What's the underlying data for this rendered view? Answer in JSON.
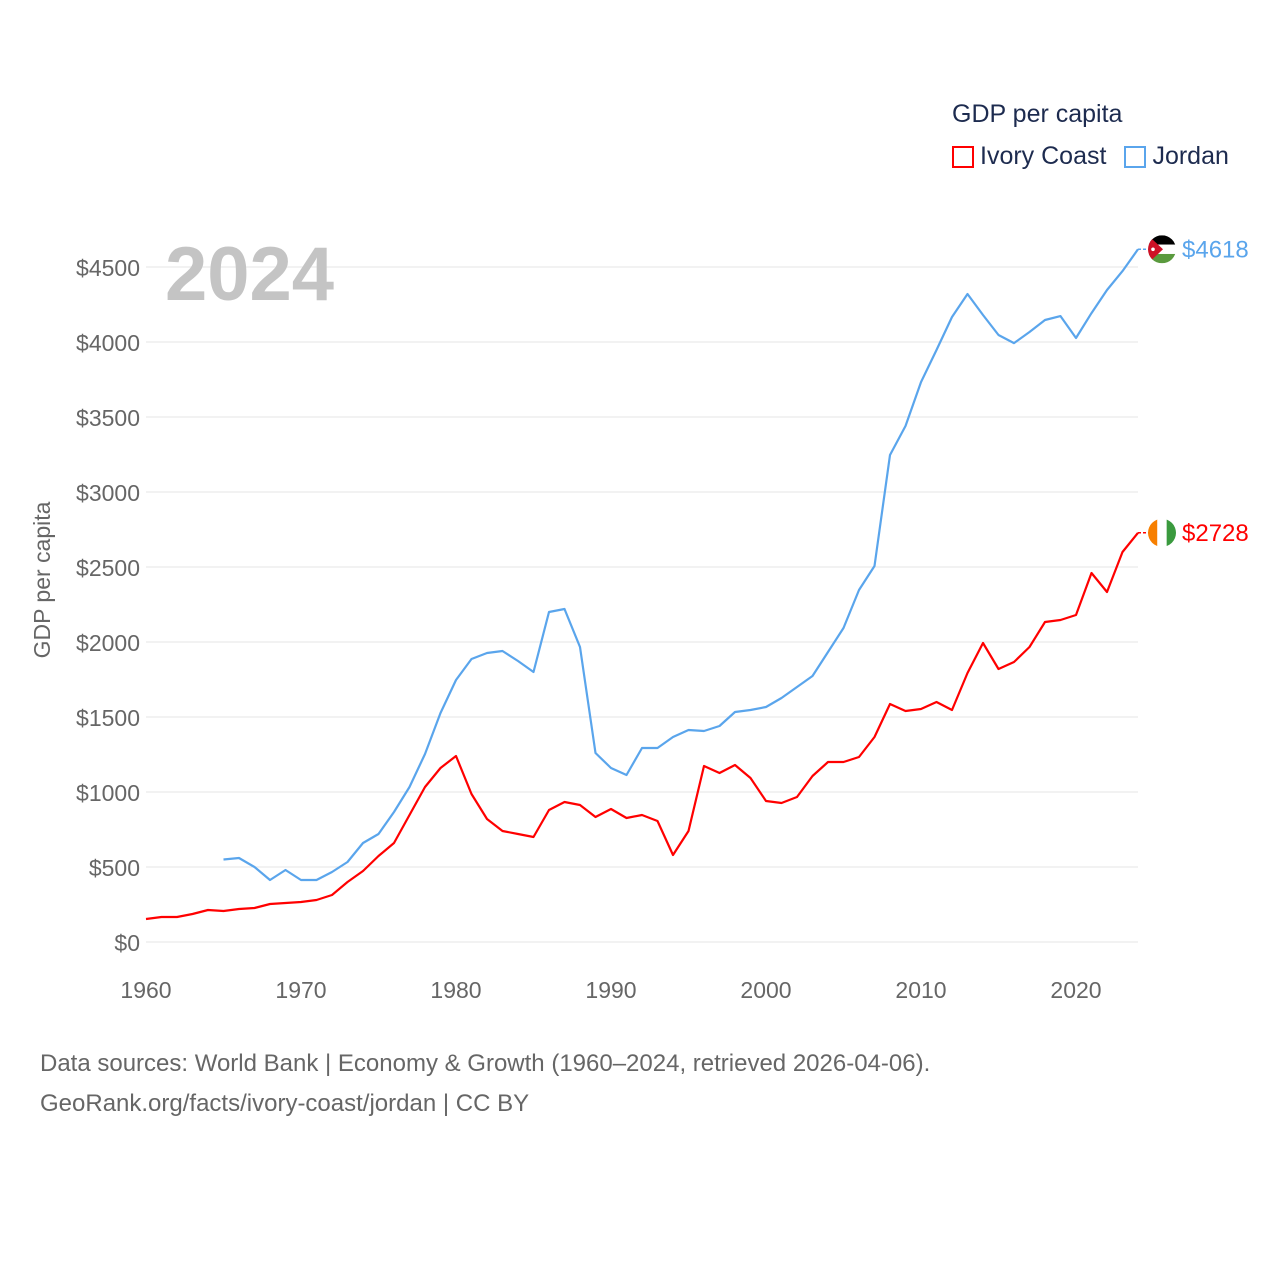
{
  "chart_data": {
    "type": "line",
    "title": "GDP per capita",
    "year_label": "2024",
    "xlabel": "",
    "ylabel": "GDP per capita",
    "xlim": [
      1960,
      2024
    ],
    "ylim": [
      0,
      4800
    ],
    "x_ticks": [
      1960,
      1970,
      1980,
      1990,
      2000,
      2010,
      2020
    ],
    "y_ticks": [
      0,
      500,
      1000,
      1500,
      2000,
      2500,
      3000,
      3500,
      4000,
      4500
    ],
    "y_tick_labels": [
      "$0",
      "$500",
      "$1000",
      "$1500",
      "$2000",
      "$2500",
      "$3000",
      "$3500",
      "$4000",
      "$4500"
    ],
    "grid": true,
    "legend_position": "top-right",
    "series": [
      {
        "name": "Ivory Coast",
        "color": "#ff0000",
        "end_label": "$2728",
        "flag": "ivory-coast",
        "start_year": 1960,
        "values": [
          153,
          167,
          167,
          187,
          213,
          207,
          220,
          227,
          253,
          260,
          267,
          280,
          313,
          400,
          473,
          573,
          660,
          847,
          1033,
          1160,
          1240,
          987,
          820,
          740,
          720,
          700,
          880,
          933,
          913,
          833,
          887,
          827,
          847,
          807,
          580,
          740,
          1173,
          1127,
          1180,
          1093,
          940,
          927,
          967,
          1107,
          1200,
          1200,
          1233,
          1367,
          1587,
          1540,
          1553,
          1600,
          1547,
          1793,
          1993,
          1820,
          1867,
          1967,
          2133,
          2147,
          2180,
          2460,
          2333,
          2600,
          2728
        ]
      },
      {
        "name": "Jordan",
        "color": "#5aa5ec",
        "end_label": "$4618",
        "flag": "jordan",
        "start_year": 1965,
        "values": [
          550,
          560,
          500,
          413,
          480,
          413,
          413,
          467,
          533,
          660,
          720,
          867,
          1033,
          1253,
          1527,
          1747,
          1887,
          1927,
          1940,
          1873,
          1800,
          2200,
          2220,
          1967,
          1260,
          1160,
          1113,
          1293,
          1293,
          1367,
          1413,
          1407,
          1440,
          1533,
          1547,
          1567,
          1627,
          1700,
          1773,
          1933,
          2093,
          2347,
          2507,
          3247,
          3440,
          3733,
          3947,
          4167,
          4320,
          4180,
          4047,
          3993,
          4067,
          4147,
          4173,
          4027,
          4193,
          4347,
          4473,
          4618
        ]
      }
    ]
  },
  "footer": {
    "line1": "Data sources: World Bank | Economy & Growth (1960–2024, retrieved 2026-04-06).",
    "line2": "GeoRank.org/facts/ivory-coast/jordan | CC BY"
  }
}
